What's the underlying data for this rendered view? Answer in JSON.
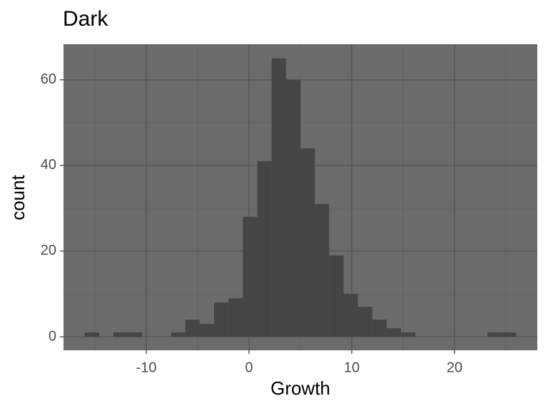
{
  "chart_data": {
    "type": "histogram",
    "title": "Dark",
    "x_label": "Growth",
    "y_label": "count",
    "bins": [
      -16,
      -14.6,
      -13.2,
      -11.8,
      -10.4,
      -9,
      -7.6,
      -6.2,
      -4.8,
      -3.4,
      -2,
      -0.6,
      0.8,
      2.2,
      3.6,
      5,
      6.4,
      7.8,
      9.2,
      10.6,
      12,
      13.4,
      14.8,
      16.2,
      17.6,
      19,
      20.4,
      21.8,
      23.2,
      24.6,
      26
    ],
    "values": [
      1,
      0,
      1,
      1,
      0,
      0,
      1,
      4,
      3,
      8,
      9,
      28,
      41,
      65,
      60,
      44,
      31,
      19,
      10,
      7,
      4,
      2,
      1,
      0,
      0,
      0,
      0,
      0,
      1,
      1
    ],
    "color": "#454545",
    "panel_color": "#6b6b6b",
    "grid": true,
    "xlim": [
      -18.06,
      28.06
    ],
    "ylim": [
      -3.17,
      68.3
    ],
    "xticks": [
      -10,
      0,
      10,
      20
    ],
    "yticks": [
      0,
      20,
      40,
      60
    ]
  }
}
